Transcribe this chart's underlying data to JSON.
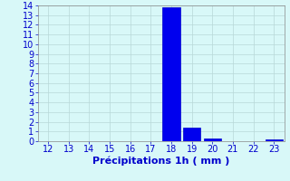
{
  "hours": [
    12,
    13,
    14,
    15,
    16,
    17,
    18,
    19,
    20,
    21,
    22,
    23
  ],
  "values": [
    0,
    0,
    0,
    0,
    0,
    0,
    13.8,
    1.4,
    0.3,
    0,
    0,
    0.2
  ],
  "bar_color": "#0000ee",
  "bar_edge_color": "#0000cc",
  "background_color": "#d8f8f8",
  "grid_color": "#b8d8d8",
  "text_color": "#0000cc",
  "xlabel": "Précipitations 1h ( mm )",
  "ylim": [
    0,
    14
  ],
  "xlim": [
    11.5,
    23.5
  ],
  "yticks": [
    0,
    1,
    2,
    3,
    4,
    5,
    6,
    7,
    8,
    9,
    10,
    11,
    12,
    13,
    14
  ],
  "xticks": [
    12,
    13,
    14,
    15,
    16,
    17,
    18,
    19,
    20,
    21,
    22,
    23
  ],
  "tick_fontsize": 7,
  "label_fontsize": 8
}
